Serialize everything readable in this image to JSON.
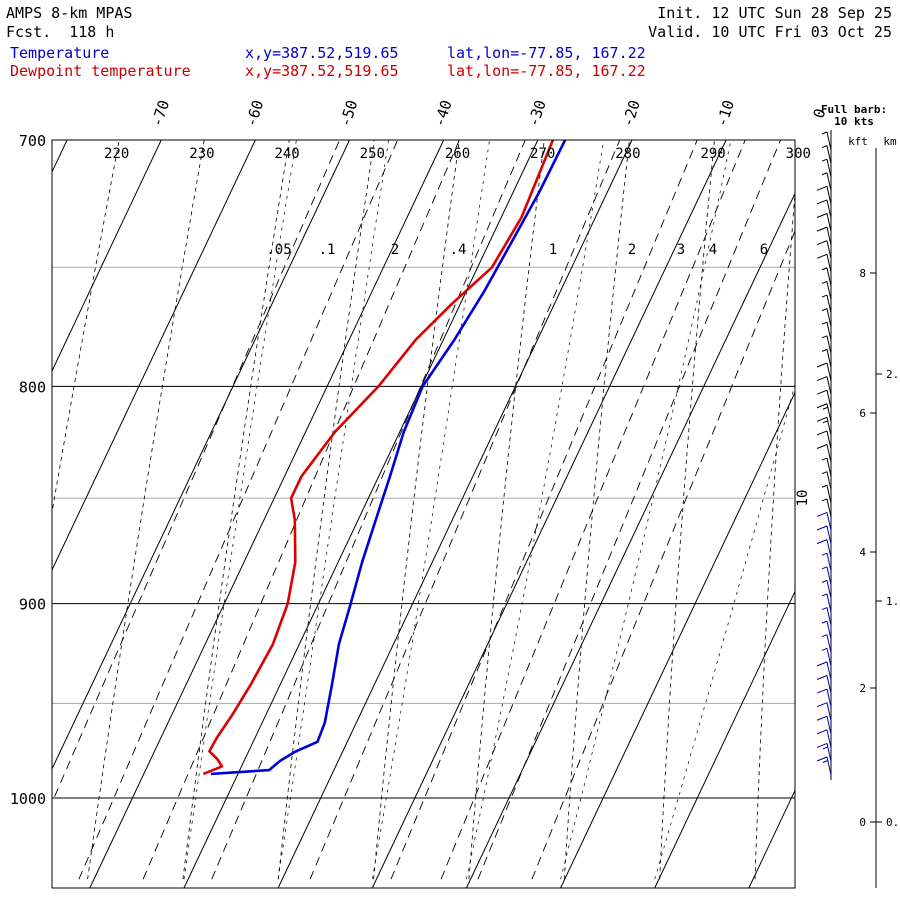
{
  "header": {
    "model": "AMPS 8-km MPAS",
    "forecast": "Fcst.  118 h",
    "init": "Init. 12 UTC Sun 28 Sep 25",
    "valid": "Valid. 10 UTC Fri 03 Oct 25"
  },
  "legend": [
    {
      "label": "Temperature",
      "xy": "x,y=387.52,519.65",
      "latlon": "lat,lon=-77.85, 167.22",
      "color": "#0000dd"
    },
    {
      "label": "Dewpoint temperature",
      "xy": "x,y=387.52,519.65",
      "latlon": "lat,lon=-77.85, 167.22",
      "color": "#dd0000"
    }
  ],
  "wind_note": {
    "line1": "Full barb:",
    "line2": "10 kts"
  },
  "height_axis": {
    "left_unit": "kft",
    "right_unit": "km"
  },
  "chart_data": {
    "type": "line",
    "diagram": "skew-T log-P",
    "pressure_range_hPa": [
      1045,
      700
    ],
    "pressure_ticks": [
      700,
      800,
      900,
      1000
    ],
    "temperature_ticks_C": [
      -70,
      -60,
      -50,
      -40,
      -30,
      -20,
      -10,
      0
    ],
    "theta_labels_K": [
      220,
      230,
      240,
      250,
      260,
      270,
      280,
      290,
      300
    ],
    "mixing_ratio_labels": [
      ".05",
      ".1",
      "2",
      ".4",
      "1",
      "2",
      "3",
      "4",
      "6"
    ],
    "dry_adiabats_K": [
      220,
      230,
      240,
      250,
      260,
      270,
      280,
      290,
      300,
      310
    ],
    "moist_adiabat_label": "10",
    "series": [
      {
        "name": "Temperature",
        "color": "#0000dd",
        "points": [
          [
            987,
            -32.5
          ],
          [
            985,
            -26.5
          ],
          [
            980,
            -25.8
          ],
          [
            975,
            -24.6
          ],
          [
            970,
            -22.8
          ],
          [
            960,
            -23.0
          ],
          [
            940,
            -24.2
          ],
          [
            920,
            -25.5
          ],
          [
            900,
            -26.3
          ],
          [
            880,
            -27.2
          ],
          [
            860,
            -27.9
          ],
          [
            840,
            -28.6
          ],
          [
            820,
            -29.4
          ],
          [
            800,
            -29.7
          ],
          [
            780,
            -28.7
          ],
          [
            760,
            -28.0
          ],
          [
            740,
            -27.6
          ],
          [
            720,
            -27.2
          ],
          [
            700,
            -27.1
          ]
        ]
      },
      {
        "name": "Dewpoint temperature",
        "color": "#dd0000",
        "points": [
          [
            987,
            -33.3
          ],
          [
            983,
            -31.7
          ],
          [
            979,
            -32.6
          ],
          [
            975,
            -33.8
          ],
          [
            968,
            -33.7
          ],
          [
            955,
            -33.2
          ],
          [
            940,
            -32.8
          ],
          [
            920,
            -32.5
          ],
          [
            900,
            -33.0
          ],
          [
            880,
            -34.3
          ],
          [
            860,
            -36.5
          ],
          [
            850,
            -38.0
          ],
          [
            840,
            -38.0
          ],
          [
            820,
            -36.7
          ],
          [
            800,
            -34.4
          ],
          [
            780,
            -32.8
          ],
          [
            765,
            -30.8
          ],
          [
            750,
            -28.4
          ],
          [
            730,
            -27.8
          ],
          [
            700,
            -28.4
          ]
        ]
      }
    ],
    "height_ticks_kft": [
      0,
      2,
      4,
      6,
      8
    ],
    "height_ticks_km": [
      "0.",
      "1.",
      "2."
    ],
    "wind_barbs_kts": [
      5,
      5,
      5,
      5,
      10,
      10,
      10,
      10,
      10,
      10,
      5,
      5,
      5,
      5,
      5,
      5,
      5,
      10,
      10,
      10,
      15,
      15,
      10,
      10,
      5,
      5,
      5,
      5,
      10,
      10,
      10,
      5,
      5,
      5,
      5,
      5,
      5,
      5,
      5,
      10,
      10,
      10,
      10,
      10,
      10,
      15,
      15
    ]
  }
}
